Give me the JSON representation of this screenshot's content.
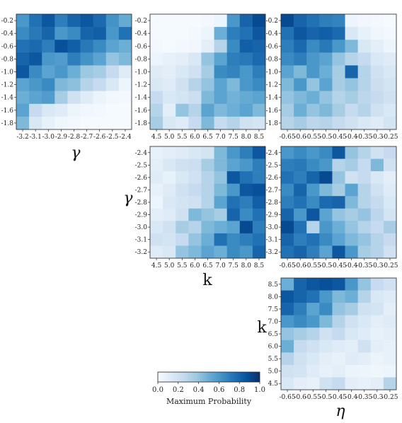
{
  "colorscale": {
    "stops": [
      "#f7fbff",
      "#deebf7",
      "#c6dbef",
      "#9ecae1",
      "#6baed6",
      "#4292c6",
      "#2171b5",
      "#08519c",
      "#08306b"
    ]
  },
  "colorbar": {
    "label": "Maximum Probability",
    "ticks": [
      "0.0",
      "0.2",
      "0.4",
      "0.6",
      "0.8",
      "1.0"
    ],
    "range": [
      0,
      1
    ]
  },
  "axes_labels": {
    "gamma": "γ",
    "k": "k",
    "eta": "η"
  },
  "chart_data": [
    {
      "type": "heatmap",
      "id": "eta_vs_gamma",
      "xlabel": "γ",
      "ylabel": "",
      "x_ticks": [
        "-3.2",
        "-3.1",
        "-3.0",
        "-2.9",
        "-2.8",
        "-2.7",
        "-2.6",
        "-2.5",
        "-2.4"
      ],
      "y_ticks": [
        "-0.2",
        "-0.4",
        "-0.6",
        "-0.8",
        "-1.0",
        "-1.2",
        "-1.4",
        "-1.6",
        "-1.8"
      ],
      "values": [
        [
          0.6,
          0.75,
          0.85,
          0.7,
          0.8,
          0.85,
          0.78,
          0.62,
          0.52
        ],
        [
          0.65,
          0.72,
          0.8,
          0.6,
          0.65,
          0.8,
          0.82,
          0.6,
          0.75
        ],
        [
          0.75,
          0.78,
          0.7,
          0.88,
          0.82,
          0.72,
          0.65,
          0.55,
          0.5
        ],
        [
          0.8,
          0.85,
          0.6,
          0.58,
          0.7,
          0.62,
          0.55,
          0.4,
          0.45
        ],
        [
          0.85,
          0.65,
          0.55,
          0.6,
          0.5,
          0.38,
          0.35,
          0.25,
          0.12
        ],
        [
          0.55,
          0.6,
          0.65,
          0.45,
          0.42,
          0.3,
          0.25,
          0.15,
          0.05
        ],
        [
          0.5,
          0.55,
          0.58,
          0.35,
          0.2,
          0.12,
          0.06,
          0.03,
          0.02
        ],
        [
          0.55,
          0.25,
          0.15,
          0.12,
          0.05,
          0.03,
          0.02,
          0.01,
          0.01
        ],
        [
          0.45,
          0.15,
          0.08,
          0.04,
          0.02,
          0.01,
          0.01,
          0.01,
          0.01
        ]
      ]
    },
    {
      "type": "heatmap",
      "id": "eta_vs_k",
      "xlabel": "",
      "ylabel": "",
      "x_ticks": [
        "4.5",
        "5.0",
        "5.5",
        "6.0",
        "6.5",
        "7.0",
        "7.5",
        "8.0",
        "8.5"
      ],
      "y_ticks": [
        "-0.2",
        "-0.4",
        "-0.6",
        "-0.8",
        "-1.0",
        "-1.2",
        "-1.4",
        "-1.6",
        "-1.8"
      ],
      "values": [
        [
          0.01,
          0.01,
          0.01,
          0.01,
          0.02,
          0.05,
          0.6,
          0.8,
          0.9
        ],
        [
          0.01,
          0.01,
          0.01,
          0.02,
          0.05,
          0.5,
          0.7,
          0.75,
          0.85
        ],
        [
          0.02,
          0.01,
          0.02,
          0.03,
          0.1,
          0.3,
          0.65,
          0.82,
          0.8
        ],
        [
          0.05,
          0.08,
          0.1,
          0.15,
          0.4,
          0.55,
          0.7,
          0.72,
          0.78
        ],
        [
          0.12,
          0.1,
          0.15,
          0.2,
          0.35,
          0.65,
          0.68,
          0.6,
          0.7
        ],
        [
          0.15,
          0.12,
          0.2,
          0.3,
          0.4,
          0.55,
          0.45,
          0.6,
          0.65
        ],
        [
          0.25,
          0.15,
          0.18,
          0.22,
          0.45,
          0.55,
          0.48,
          0.52,
          0.55
        ],
        [
          0.3,
          0.1,
          0.4,
          0.3,
          0.55,
          0.45,
          0.5,
          0.55,
          0.45
        ],
        [
          0.35,
          0.15,
          0.12,
          0.25,
          0.45,
          0.25,
          0.3,
          0.2,
          0.18
        ]
      ]
    },
    {
      "type": "heatmap",
      "id": "eta_vs_eta_prime",
      "xlabel": "",
      "ylabel": "",
      "x_ticks": [
        "-0.65",
        "-0.6",
        "-0.55",
        "-0.5",
        "-0.45",
        "-0.4",
        "-0.35",
        "-0.3",
        "-0.25"
      ],
      "y_ticks": [
        "-0.2",
        "-0.4",
        "-0.6",
        "-0.8",
        "-1.0",
        "-1.2",
        "-1.4",
        "-1.6",
        "-1.8"
      ],
      "values": [
        [
          0.9,
          0.8,
          0.75,
          0.7,
          0.68,
          0.05,
          0.03,
          0.02,
          0.01
        ],
        [
          0.75,
          0.85,
          0.8,
          0.82,
          0.78,
          0.15,
          0.08,
          0.04,
          0.02
        ],
        [
          0.7,
          0.78,
          0.65,
          0.72,
          0.6,
          0.45,
          0.15,
          0.1,
          0.05
        ],
        [
          0.65,
          0.7,
          0.6,
          0.55,
          0.4,
          0.3,
          0.25,
          0.15,
          0.12
        ],
        [
          0.55,
          0.45,
          0.6,
          0.5,
          0.35,
          0.8,
          0.3,
          0.2,
          0.15
        ],
        [
          0.45,
          0.6,
          0.4,
          0.55,
          0.35,
          0.4,
          0.3,
          0.22,
          0.18
        ],
        [
          0.4,
          0.45,
          0.5,
          0.4,
          0.3,
          0.35,
          0.28,
          0.25,
          0.2
        ],
        [
          0.35,
          0.5,
          0.4,
          0.45,
          0.35,
          0.25,
          0.3,
          0.2,
          0.15
        ],
        [
          0.3,
          0.35,
          0.28,
          0.3,
          0.25,
          0.2,
          0.15,
          0.12,
          0.18
        ]
      ]
    },
    {
      "type": "heatmap",
      "id": "gamma_vs_k",
      "xlabel": "k",
      "ylabel": "γ",
      "x_ticks": [
        "4.5",
        "5.0",
        "5.5",
        "6.0",
        "6.5",
        "7.0",
        "7.5",
        "8.0",
        "8.5"
      ],
      "y_ticks": [
        "-2.4",
        "-2.5",
        "-2.6",
        "-2.7",
        "-2.8",
        "-2.9",
        "-3.0",
        "-3.1",
        "-3.2"
      ],
      "values": [
        [
          0.08,
          0.1,
          0.12,
          0.15,
          0.18,
          0.45,
          0.6,
          0.7,
          0.85
        ],
        [
          0.1,
          0.15,
          0.2,
          0.22,
          0.35,
          0.45,
          0.55,
          0.6,
          0.7
        ],
        [
          0.12,
          0.08,
          0.15,
          0.2,
          0.3,
          0.4,
          0.85,
          0.75,
          0.7
        ],
        [
          0.08,
          0.12,
          0.2,
          0.25,
          0.3,
          0.45,
          0.6,
          0.85,
          0.88
        ],
        [
          0.05,
          0.15,
          0.18,
          0.2,
          0.3,
          0.55,
          0.75,
          0.7,
          0.82
        ],
        [
          0.1,
          0.12,
          0.2,
          0.45,
          0.4,
          0.35,
          0.8,
          0.65,
          0.75
        ],
        [
          0.15,
          0.2,
          0.35,
          0.3,
          0.45,
          0.5,
          0.55,
          0.9,
          0.7
        ],
        [
          0.2,
          0.18,
          0.25,
          0.4,
          0.5,
          0.75,
          0.65,
          0.7,
          0.75
        ],
        [
          0.12,
          0.15,
          0.4,
          0.45,
          0.55,
          0.5,
          0.65,
          0.6,
          0.8
        ]
      ]
    },
    {
      "type": "heatmap",
      "id": "gamma_vs_eta",
      "xlabel": "",
      "ylabel": "",
      "x_ticks": [
        "-0.65",
        "-0.6",
        "-0.55",
        "-0.5",
        "-0.45",
        "-0.4",
        "-0.35",
        "-0.3",
        "-0.25"
      ],
      "y_ticks": [
        "-2.4",
        "-2.5",
        "-2.6",
        "-2.7",
        "-2.8",
        "-2.9",
        "-3.0",
        "-3.1",
        "-3.2"
      ],
      "values": [
        [
          0.6,
          0.65,
          0.6,
          0.65,
          0.85,
          0.4,
          0.3,
          0.2,
          0.25
        ],
        [
          0.7,
          0.72,
          0.65,
          0.6,
          0.3,
          0.35,
          0.25,
          0.45,
          0.2
        ],
        [
          0.75,
          0.7,
          0.8,
          0.9,
          0.4,
          0.2,
          0.25,
          0.15,
          0.1
        ],
        [
          0.65,
          0.8,
          0.6,
          0.45,
          0.35,
          0.55,
          0.3,
          0.2,
          0.12
        ],
        [
          0.7,
          0.75,
          0.65,
          0.78,
          0.8,
          0.45,
          0.3,
          0.25,
          0.15
        ],
        [
          0.8,
          0.6,
          0.85,
          0.55,
          0.4,
          0.35,
          0.4,
          0.28,
          0.18
        ],
        [
          0.9,
          0.75,
          0.3,
          0.6,
          0.5,
          0.4,
          0.3,
          0.25,
          0.35
        ],
        [
          0.8,
          0.7,
          0.75,
          0.65,
          0.55,
          0.45,
          0.4,
          0.3,
          0.25
        ],
        [
          0.75,
          0.8,
          0.7,
          0.55,
          0.85,
          0.6,
          0.35,
          0.3,
          0.2
        ]
      ]
    },
    {
      "type": "heatmap",
      "id": "k_vs_eta",
      "xlabel": "η",
      "ylabel": "k",
      "x_ticks": [
        "-0.65",
        "-0.6",
        "-0.55",
        "-0.5",
        "-0.45",
        "-0.4",
        "-0.35",
        "-0.3",
        "-0.25"
      ],
      "y_ticks": [
        "8.5",
        "8.0",
        "7.5",
        "7.0",
        "6.5",
        "6.0",
        "5.5",
        "5.0",
        "4.5"
      ],
      "values": [
        [
          0.5,
          0.8,
          0.85,
          0.88,
          0.85,
          0.6,
          0.4,
          0.25,
          0.2
        ],
        [
          0.85,
          0.8,
          0.75,
          0.6,
          0.45,
          0.5,
          0.3,
          0.15,
          0.12
        ],
        [
          0.8,
          0.7,
          0.55,
          0.65,
          0.4,
          0.35,
          0.2,
          0.18,
          0.1
        ],
        [
          0.6,
          0.65,
          0.6,
          0.45,
          0.3,
          0.2,
          0.15,
          0.1,
          0.12
        ],
        [
          0.4,
          0.35,
          0.3,
          0.2,
          0.25,
          0.15,
          0.12,
          0.08,
          0.1
        ],
        [
          0.5,
          0.25,
          0.2,
          0.15,
          0.12,
          0.1,
          0.2,
          0.1,
          0.08
        ],
        [
          0.3,
          0.2,
          0.15,
          0.1,
          0.08,
          0.12,
          0.1,
          0.06,
          0.08
        ],
        [
          0.2,
          0.18,
          0.12,
          0.08,
          0.1,
          0.06,
          0.05,
          0.04,
          0.05
        ],
        [
          0.15,
          0.1,
          0.08,
          0.2,
          0.25,
          0.1,
          0.08,
          0.1,
          0.3
        ]
      ]
    }
  ]
}
